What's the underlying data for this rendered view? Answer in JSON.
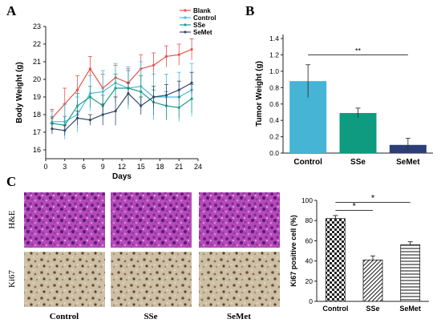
{
  "figure": {
    "panel_labels": [
      "A",
      "B",
      "C"
    ],
    "histology": {
      "row_labels": [
        "H&E",
        "Ki67"
      ],
      "column_labels": [
        "Control",
        "SSe",
        "SeMet"
      ],
      "stain_colors": {
        "he": "#b64ab8",
        "ki67": "#cdbfa6"
      }
    }
  },
  "chart_data": [
    {
      "type": "line",
      "xlabel": "Days",
      "ylabel": "Body Weight (g)",
      "xticks": [
        0,
        3,
        6,
        9,
        12,
        15,
        18,
        21,
        24
      ],
      "yticks": [
        16,
        17,
        18,
        19,
        20,
        21,
        22,
        23
      ],
      "xlim": [
        0,
        24
      ],
      "ylim": [
        15.5,
        23
      ],
      "legend_position": "top-right",
      "x": [
        1,
        3,
        5,
        7,
        9,
        11,
        13,
        15,
        17,
        19,
        21,
        23
      ],
      "series": [
        {
          "name": "Blank",
          "color": "#e8534b",
          "values": [
            17.8,
            18.6,
            19.4,
            20.6,
            19.5,
            20.1,
            19.8,
            20.6,
            20.8,
            21.3,
            21.4,
            21.7
          ],
          "errors": [
            0.5,
            0.9,
            0.8,
            0.7,
            0.8,
            0.7,
            0.8,
            0.8,
            0.7,
            0.6,
            0.6,
            0.6
          ]
        },
        {
          "name": "Control",
          "color": "#4dbbe0",
          "values": [
            17.6,
            17.6,
            18.0,
            19.2,
            19.3,
            19.8,
            19.5,
            19.6,
            19.0,
            19.0,
            19.0,
            19.4
          ],
          "errors": [
            0.6,
            1.0,
            1.0,
            1.0,
            1.2,
            1.1,
            1.2,
            1.4,
            1.3,
            1.3,
            1.4,
            1.5
          ]
        },
        {
          "name": "SSe",
          "color": "#1f9e89",
          "values": [
            17.5,
            17.4,
            18.5,
            19.0,
            18.5,
            19.5,
            19.5,
            19.3,
            18.7,
            18.5,
            18.4,
            18.9
          ],
          "errors": [
            0.4,
            0.5,
            0.7,
            0.6,
            0.6,
            0.8,
            1.0,
            0.9,
            0.7,
            0.8,
            0.6,
            0.8
          ]
        },
        {
          "name": "SeMet",
          "color": "#34496e",
          "values": [
            17.2,
            17.1,
            17.8,
            17.7,
            18.0,
            18.2,
            19.2,
            18.5,
            19.0,
            19.1,
            19.4,
            19.8
          ],
          "errors": [
            0.3,
            0.3,
            0.4,
            0.3,
            0.6,
            0.8,
            0.6,
            0.5,
            0.6,
            0.6,
            0.5,
            0.6
          ]
        }
      ]
    },
    {
      "type": "bar",
      "ylabel": "Tumor Weight (g)",
      "categories": [
        "Control",
        "SSe",
        "SeMet"
      ],
      "values": [
        0.88,
        0.49,
        0.1
      ],
      "errors": [
        0.2,
        0.06,
        0.08
      ],
      "colors": [
        "#45b4d5",
        "#0e9b80",
        "#2c3e75"
      ],
      "yticks": [
        0.0,
        0.2,
        0.4,
        0.6,
        0.8,
        1.0,
        1.2,
        1.4
      ],
      "ylim": [
        0,
        1.45
      ],
      "significance": [
        {
          "from": "Control",
          "to": "SeMet",
          "label": "**"
        }
      ]
    },
    {
      "type": "bar",
      "ylabel": "Ki67 positive cell (%)",
      "categories": [
        "Control",
        "SSe",
        "SeMet"
      ],
      "values": [
        82,
        41,
        56
      ],
      "errors": [
        3,
        4,
        3
      ],
      "patterns": [
        "checker",
        "diagonal",
        "horizontal"
      ],
      "yticks": [
        0,
        20,
        40,
        60,
        80,
        100
      ],
      "ylim": [
        0,
        100
      ],
      "significance": [
        {
          "from": "Control",
          "to": "SSe",
          "label": "*"
        },
        {
          "from": "Control",
          "to": "SeMet",
          "label": "*"
        }
      ]
    }
  ]
}
